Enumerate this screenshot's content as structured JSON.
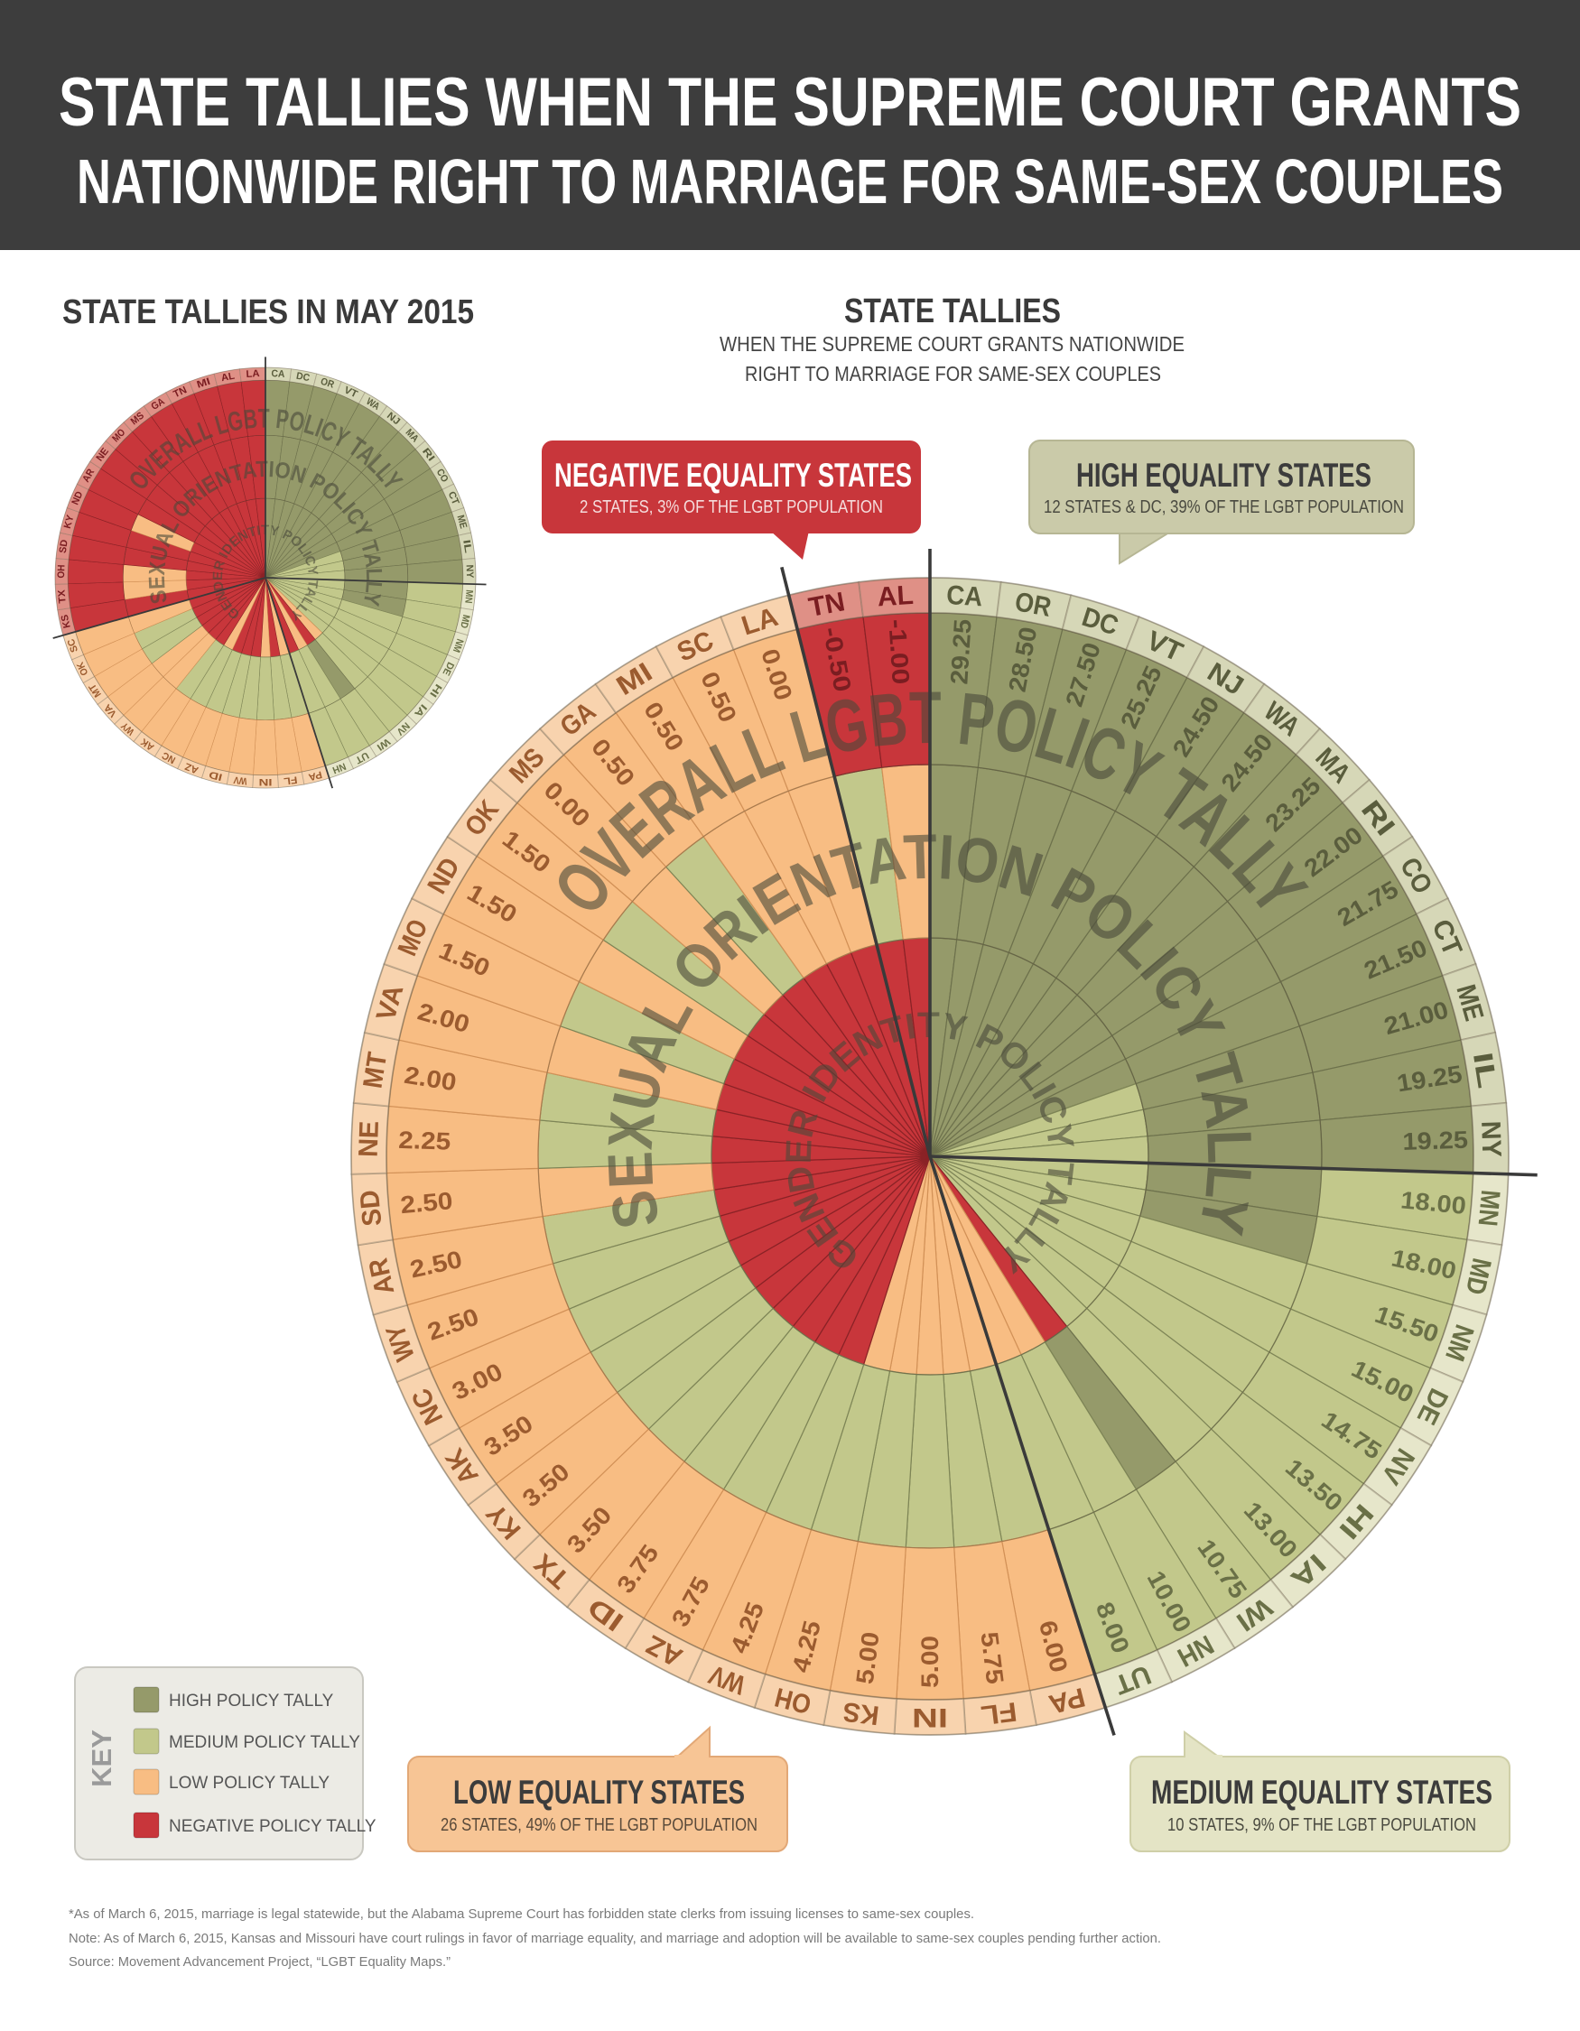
{
  "header": {
    "title_line1": "STATE TALLIES WHEN THE SUPREME COURT GRANTS",
    "title_line2": "NATIONWIDE RIGHT TO MARRIAGE FOR SAME-SEX COUPLES"
  },
  "small_chart_heading": "STATE TALLIES IN MAY 2015",
  "main_chart_heading": {
    "title": "STATE TALLIES",
    "subtitle_line1": "WHEN THE SUPREME COURT GRANTS NATIONWIDE",
    "subtitle_line2": "RIGHT TO MARRIAGE FOR SAME-SEX COUPLES"
  },
  "callouts": {
    "negative": {
      "title": "NEGATIVE EQUALITY STATES",
      "detail": "2 STATES, 3% OF THE LGBT POPULATION"
    },
    "high": {
      "title": "HIGH EQUALITY STATES",
      "detail": "12 STATES & DC, 39% OF THE LGBT POPULATION"
    },
    "low": {
      "title": "LOW EQUALITY STATES",
      "detail": "26 STATES, 49% OF THE LGBT POPULATION"
    },
    "medium": {
      "title": "MEDIUM EQUALITY STATES",
      "detail": "10 STATES, 9% OF THE LGBT POPULATION"
    }
  },
  "key": {
    "title": "KEY",
    "items": [
      {
        "category": "high",
        "label": "HIGH POLICY TALLY"
      },
      {
        "category": "medium",
        "label": "MEDIUM POLICY TALLY"
      },
      {
        "category": "low",
        "label": "LOW POLICY TALLY"
      },
      {
        "category": "negative",
        "label": "NEGATIVE POLICY TALLY"
      }
    ]
  },
  "colors": {
    "high": "#959a6a",
    "medium": "#c2c88b",
    "low": "#f8bd83",
    "negative": "#c8363b",
    "header_bg": "#3d3d3d"
  },
  "label_ring_colors": {
    "high": "#d6d7b7",
    "medium": "#e6e6ca",
    "low": "#f8d3ae",
    "negative": "#df9086"
  },
  "footnotes": [
    "*As of March 6, 2015, marriage is legal statewide, but the Alabama Supreme Court has forbidden state clerks from issuing licenses to same-sex couples.",
    "Note: As of March 6, 2015, Kansas and Missouri have court rulings in favor of marriage equality, and marriage and adoption will be available to same-sex couples pending further action.",
    "Source: Movement Advancement Project, “LGBT Equality Maps.”"
  ],
  "chart_data": [
    {
      "type": "radial",
      "title": "STATE TALLIES",
      "ring_labels": {
        "outer": "OVERALL LGBT POLICY TALLY",
        "middle": "SEXUAL ORIENTATION POLICY TALLY",
        "inner": "GENDER IDENTITY POLICY TALLY"
      },
      "states": [
        {
          "state": "CA",
          "overall": 29.25,
          "category": "high",
          "sexual_orientation": "high",
          "gender_identity": "high"
        },
        {
          "state": "OR",
          "overall": 28.5,
          "category": "high",
          "sexual_orientation": "high",
          "gender_identity": "high"
        },
        {
          "state": "DC",
          "overall": 27.5,
          "category": "high",
          "sexual_orientation": "high",
          "gender_identity": "high"
        },
        {
          "state": "VT",
          "overall": 25.25,
          "category": "high",
          "sexual_orientation": "high",
          "gender_identity": "high"
        },
        {
          "state": "NJ",
          "overall": 24.5,
          "category": "high",
          "sexual_orientation": "high",
          "gender_identity": "high"
        },
        {
          "state": "WA",
          "overall": 24.5,
          "category": "high",
          "sexual_orientation": "high",
          "gender_identity": "high"
        },
        {
          "state": "MA",
          "overall": 23.25,
          "category": "high",
          "sexual_orientation": "high",
          "gender_identity": "high"
        },
        {
          "state": "RI",
          "overall": 22.0,
          "category": "high",
          "sexual_orientation": "high",
          "gender_identity": "high"
        },
        {
          "state": "CO",
          "overall": 21.75,
          "category": "high",
          "sexual_orientation": "high",
          "gender_identity": "high"
        },
        {
          "state": "CT",
          "overall": 21.5,
          "category": "high",
          "sexual_orientation": "high",
          "gender_identity": "high"
        },
        {
          "state": "ME",
          "overall": 21.0,
          "category": "high",
          "sexual_orientation": "high",
          "gender_identity": "medium"
        },
        {
          "state": "IL",
          "overall": 19.25,
          "category": "high",
          "sexual_orientation": "high",
          "gender_identity": "medium"
        },
        {
          "state": "NY",
          "overall": 19.25,
          "category": "high",
          "sexual_orientation": "high",
          "gender_identity": "medium"
        },
        {
          "state": "MN",
          "overall": 18.0,
          "category": "medium",
          "sexual_orientation": "high",
          "gender_identity": "medium"
        },
        {
          "state": "MD",
          "overall": 18.0,
          "category": "medium",
          "sexual_orientation": "high",
          "gender_identity": "medium"
        },
        {
          "state": "NM",
          "overall": 15.5,
          "category": "medium",
          "sexual_orientation": "medium",
          "gender_identity": "medium"
        },
        {
          "state": "DE",
          "overall": 15.0,
          "category": "medium",
          "sexual_orientation": "medium",
          "gender_identity": "medium"
        },
        {
          "state": "NV",
          "overall": 14.75,
          "category": "medium",
          "sexual_orientation": "medium",
          "gender_identity": "medium"
        },
        {
          "state": "HI",
          "overall": 13.5,
          "category": "medium",
          "sexual_orientation": "medium",
          "gender_identity": "medium"
        },
        {
          "state": "IA",
          "overall": 13.0,
          "category": "medium",
          "sexual_orientation": "medium",
          "gender_identity": "medium"
        },
        {
          "state": "WI",
          "overall": 10.75,
          "category": "medium",
          "sexual_orientation": "high",
          "gender_identity": "negative"
        },
        {
          "state": "NH",
          "overall": 10.0,
          "category": "medium",
          "sexual_orientation": "medium",
          "gender_identity": "low"
        },
        {
          "state": "UT",
          "overall": 8.0,
          "category": "medium",
          "sexual_orientation": "medium",
          "gender_identity": "low"
        },
        {
          "state": "PA",
          "overall": 6.0,
          "category": "low",
          "sexual_orientation": "medium",
          "gender_identity": "low"
        },
        {
          "state": "FL",
          "overall": 5.75,
          "category": "low",
          "sexual_orientation": "medium",
          "gender_identity": "low"
        },
        {
          "state": "IN",
          "overall": 5.0,
          "category": "low",
          "sexual_orientation": "medium",
          "gender_identity": "low"
        },
        {
          "state": "KS",
          "overall": 5.0,
          "category": "low",
          "sexual_orientation": "medium",
          "gender_identity": "low"
        },
        {
          "state": "OH",
          "overall": 4.25,
          "category": "low",
          "sexual_orientation": "medium",
          "gender_identity": "low"
        },
        {
          "state": "WV",
          "overall": 4.25,
          "category": "low",
          "sexual_orientation": "medium",
          "gender_identity": "negative"
        },
        {
          "state": "AZ",
          "overall": 3.75,
          "category": "low",
          "sexual_orientation": "medium",
          "gender_identity": "negative"
        },
        {
          "state": "ID",
          "overall": 3.75,
          "category": "low",
          "sexual_orientation": "medium",
          "gender_identity": "negative"
        },
        {
          "state": "TX",
          "overall": 3.5,
          "category": "low",
          "sexual_orientation": "medium",
          "gender_identity": "negative"
        },
        {
          "state": "KY",
          "overall": 3.5,
          "category": "low",
          "sexual_orientation": "medium",
          "gender_identity": "negative"
        },
        {
          "state": "AK",
          "overall": 3.5,
          "category": "low",
          "sexual_orientation": "medium",
          "gender_identity": "negative"
        },
        {
          "state": "NC",
          "overall": 3.0,
          "category": "low",
          "sexual_orientation": "medium",
          "gender_identity": "negative"
        },
        {
          "state": "WY",
          "overall": 2.5,
          "category": "low",
          "sexual_orientation": "medium",
          "gender_identity": "negative"
        },
        {
          "state": "AR",
          "overall": 2.5,
          "category": "low",
          "sexual_orientation": "medium",
          "gender_identity": "negative"
        },
        {
          "state": "SD",
          "overall": 2.5,
          "category": "low",
          "sexual_orientation": "low",
          "gender_identity": "negative"
        },
        {
          "state": "NE",
          "overall": 2.25,
          "category": "low",
          "sexual_orientation": "medium",
          "gender_identity": "negative"
        },
        {
          "state": "MT",
          "overall": 2.0,
          "category": "low",
          "sexual_orientation": "medium",
          "gender_identity": "negative"
        },
        {
          "state": "VA",
          "overall": 2.0,
          "category": "low",
          "sexual_orientation": "low",
          "gender_identity": "negative"
        },
        {
          "state": "MO",
          "overall": 1.5,
          "category": "low",
          "sexual_orientation": "medium",
          "gender_identity": "negative"
        },
        {
          "state": "ND",
          "overall": 1.5,
          "category": "low",
          "sexual_orientation": "low",
          "gender_identity": "negative"
        },
        {
          "state": "OK",
          "overall": 1.5,
          "category": "low",
          "sexual_orientation": "medium",
          "gender_identity": "negative"
        },
        {
          "state": "MS",
          "overall": 0.0,
          "category": "low",
          "sexual_orientation": "low",
          "gender_identity": "negative"
        },
        {
          "state": "GA",
          "overall": 0.5,
          "category": "low",
          "sexual_orientation": "medium",
          "gender_identity": "negative"
        },
        {
          "state": "MI",
          "overall": 0.5,
          "category": "low",
          "sexual_orientation": "low",
          "gender_identity": "negative"
        },
        {
          "state": "SC",
          "overall": 0.5,
          "category": "low",
          "sexual_orientation": "low",
          "gender_identity": "negative"
        },
        {
          "state": "LA",
          "overall": 0.0,
          "category": "low",
          "sexual_orientation": "low",
          "gender_identity": "negative"
        },
        {
          "state": "TN",
          "overall": -0.5,
          "category": "negative",
          "sexual_orientation": "medium",
          "gender_identity": "negative"
        },
        {
          "state": "AL",
          "overall": -1.0,
          "category": "negative",
          "sexual_orientation": "low",
          "gender_identity": "negative"
        }
      ]
    },
    {
      "type": "radial",
      "title": "STATE TALLIES IN MAY 2015",
      "ring_labels": {
        "outer": "OVERALL LGBT POLICY TALLY",
        "middle": "SEXUAL ORIENTATION POLICY TALLY",
        "inner": "GENDER IDENTITY POLICY TALLY"
      },
      "states": [
        {
          "state": "CA",
          "category": "high",
          "sexual_orientation": "high",
          "gender_identity": "high"
        },
        {
          "state": "DC",
          "category": "high",
          "sexual_orientation": "high",
          "gender_identity": "high"
        },
        {
          "state": "OR",
          "category": "high",
          "sexual_orientation": "high",
          "gender_identity": "high"
        },
        {
          "state": "VT",
          "category": "high",
          "sexual_orientation": "high",
          "gender_identity": "high"
        },
        {
          "state": "WA",
          "category": "high",
          "sexual_orientation": "high",
          "gender_identity": "high"
        },
        {
          "state": "NJ",
          "category": "high",
          "sexual_orientation": "high",
          "gender_identity": "high"
        },
        {
          "state": "MA",
          "category": "high",
          "sexual_orientation": "high",
          "gender_identity": "high"
        },
        {
          "state": "RI",
          "category": "high",
          "sexual_orientation": "high",
          "gender_identity": "high"
        },
        {
          "state": "CO",
          "category": "high",
          "sexual_orientation": "high",
          "gender_identity": "high"
        },
        {
          "state": "CT",
          "category": "high",
          "sexual_orientation": "high",
          "gender_identity": "high"
        },
        {
          "state": "ME",
          "category": "high",
          "sexual_orientation": "high",
          "gender_identity": "medium"
        },
        {
          "state": "IL",
          "category": "high",
          "sexual_orientation": "high",
          "gender_identity": "medium"
        },
        {
          "state": "NY",
          "category": "high",
          "sexual_orientation": "high",
          "gender_identity": "medium"
        },
        {
          "state": "MN",
          "category": "medium",
          "sexual_orientation": "high",
          "gender_identity": "medium"
        },
        {
          "state": "MD",
          "category": "medium",
          "sexual_orientation": "high",
          "gender_identity": "medium"
        },
        {
          "state": "NM",
          "category": "medium",
          "sexual_orientation": "medium",
          "gender_identity": "medium"
        },
        {
          "state": "DE",
          "category": "medium",
          "sexual_orientation": "medium",
          "gender_identity": "medium"
        },
        {
          "state": "HI",
          "category": "medium",
          "sexual_orientation": "medium",
          "gender_identity": "medium"
        },
        {
          "state": "IA",
          "category": "medium",
          "sexual_orientation": "medium",
          "gender_identity": "medium"
        },
        {
          "state": "NV",
          "category": "medium",
          "sexual_orientation": "medium",
          "gender_identity": "low"
        },
        {
          "state": "WI",
          "category": "medium",
          "sexual_orientation": "high",
          "gender_identity": "negative"
        },
        {
          "state": "UT",
          "category": "medium",
          "sexual_orientation": "medium",
          "gender_identity": "low"
        },
        {
          "state": "NH",
          "category": "medium",
          "sexual_orientation": "medium",
          "gender_identity": "negative"
        },
        {
          "state": "PA",
          "category": "low",
          "sexual_orientation": "medium",
          "gender_identity": "low"
        },
        {
          "state": "FL",
          "category": "low",
          "sexual_orientation": "medium",
          "gender_identity": "negative"
        },
        {
          "state": "IN",
          "category": "low",
          "sexual_orientation": "medium",
          "gender_identity": "low"
        },
        {
          "state": "WV",
          "category": "low",
          "sexual_orientation": "medium",
          "gender_identity": "negative"
        },
        {
          "state": "ID",
          "category": "low",
          "sexual_orientation": "medium",
          "gender_identity": "negative"
        },
        {
          "state": "AZ",
          "category": "low",
          "sexual_orientation": "medium",
          "gender_identity": "negative"
        },
        {
          "state": "NC",
          "category": "low",
          "sexual_orientation": "medium",
          "gender_identity": "low"
        },
        {
          "state": "AK",
          "category": "low",
          "sexual_orientation": "medium",
          "gender_identity": "negative"
        },
        {
          "state": "WY",
          "category": "low",
          "sexual_orientation": "low",
          "gender_identity": "negative"
        },
        {
          "state": "VA",
          "category": "low",
          "sexual_orientation": "low",
          "gender_identity": "negative"
        },
        {
          "state": "MT",
          "category": "low",
          "sexual_orientation": "medium",
          "gender_identity": "negative"
        },
        {
          "state": "OK",
          "category": "low",
          "sexual_orientation": "medium",
          "gender_identity": "negative"
        },
        {
          "state": "SC",
          "category": "low",
          "sexual_orientation": "low",
          "gender_identity": "negative"
        },
        {
          "state": "KS",
          "category": "negative",
          "sexual_orientation": "negative",
          "gender_identity": "negative"
        },
        {
          "state": "TX",
          "category": "negative",
          "sexual_orientation": "low",
          "gender_identity": "negative"
        },
        {
          "state": "OH",
          "category": "negative",
          "sexual_orientation": "low",
          "gender_identity": "negative"
        },
        {
          "state": "SD",
          "category": "negative",
          "sexual_orientation": "negative",
          "gender_identity": "negative"
        },
        {
          "state": "KY",
          "category": "negative",
          "sexual_orientation": "negative",
          "gender_identity": "negative"
        },
        {
          "state": "ND",
          "category": "negative",
          "sexual_orientation": "low",
          "gender_identity": "negative"
        },
        {
          "state": "AR",
          "category": "negative",
          "sexual_orientation": "negative",
          "gender_identity": "negative"
        },
        {
          "state": "NE",
          "category": "negative",
          "sexual_orientation": "negative",
          "gender_identity": "negative"
        },
        {
          "state": "MO",
          "category": "negative",
          "sexual_orientation": "negative",
          "gender_identity": "negative"
        },
        {
          "state": "MS",
          "category": "negative",
          "sexual_orientation": "negative",
          "gender_identity": "negative"
        },
        {
          "state": "GA",
          "category": "negative",
          "sexual_orientation": "negative",
          "gender_identity": "negative"
        },
        {
          "state": "TN",
          "category": "negative",
          "sexual_orientation": "negative",
          "gender_identity": "negative"
        },
        {
          "state": "MI",
          "category": "negative",
          "sexual_orientation": "negative",
          "gender_identity": "negative"
        },
        {
          "state": "AL",
          "category": "negative",
          "sexual_orientation": "negative",
          "gender_identity": "negative"
        },
        {
          "state": "LA",
          "category": "negative",
          "sexual_orientation": "negative",
          "gender_identity": "negative"
        }
      ]
    }
  ]
}
